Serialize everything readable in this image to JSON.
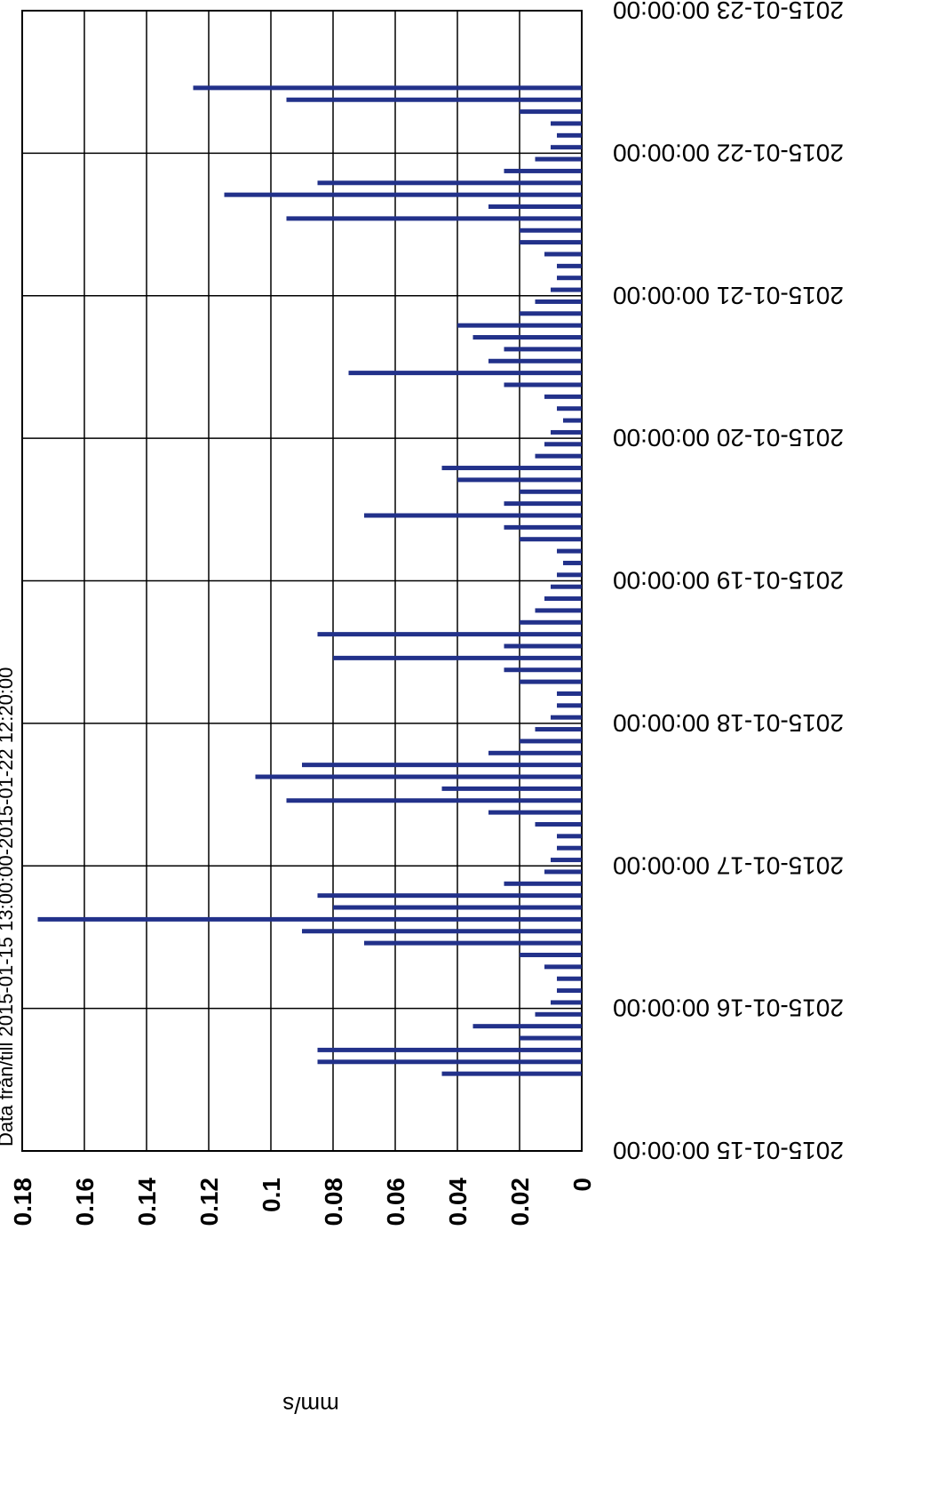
{
  "chart_data": {
    "type": "bar",
    "title": "Data från/till 2015-01-15 13:00:00-2015-01-22 12:20:00",
    "y_label": "mm/s",
    "color": "#22318a",
    "grid": true,
    "xlim": [
      "2015-01-15 00:00:00",
      "2015-01-23 00:00:00"
    ],
    "xticks": [
      "2015-01-15 00:00:00",
      "2015-01-16 00:00:00",
      "2015-01-17 00:00:00",
      "2015-01-18 00:00:00",
      "2015-01-19 00:00:00",
      "2015-01-20 00:00:00",
      "2015-01-21 00:00:00",
      "2015-01-22 00:00:00",
      "2015-01-23 00:00:00"
    ],
    "ylim": [
      0,
      0.18
    ],
    "yticks": [
      0,
      0.02,
      0.04,
      0.06,
      0.08,
      0.1,
      0.12,
      0.14,
      0.16,
      0.18
    ],
    "x": [
      "2015-01-15 13:00:00",
      "2015-01-15 15:00:00",
      "2015-01-15 17:00:00",
      "2015-01-15 19:00:00",
      "2015-01-15 21:00:00",
      "2015-01-15 23:00:00",
      "2015-01-16 01:00:00",
      "2015-01-16 03:00:00",
      "2015-01-16 05:00:00",
      "2015-01-16 07:00:00",
      "2015-01-16 09:00:00",
      "2015-01-16 11:00:00",
      "2015-01-16 13:00:00",
      "2015-01-16 15:00:00",
      "2015-01-16 17:00:00",
      "2015-01-16 19:00:00",
      "2015-01-16 21:00:00",
      "2015-01-16 23:00:00",
      "2015-01-17 01:00:00",
      "2015-01-17 03:00:00",
      "2015-01-17 05:00:00",
      "2015-01-17 07:00:00",
      "2015-01-17 09:00:00",
      "2015-01-17 11:00:00",
      "2015-01-17 13:00:00",
      "2015-01-17 15:00:00",
      "2015-01-17 17:00:00",
      "2015-01-17 19:00:00",
      "2015-01-17 21:00:00",
      "2015-01-17 23:00:00",
      "2015-01-18 01:00:00",
      "2015-01-18 03:00:00",
      "2015-01-18 05:00:00",
      "2015-01-18 07:00:00",
      "2015-01-18 09:00:00",
      "2015-01-18 11:00:00",
      "2015-01-18 13:00:00",
      "2015-01-18 15:00:00",
      "2015-01-18 17:00:00",
      "2015-01-18 19:00:00",
      "2015-01-18 21:00:00",
      "2015-01-18 23:00:00",
      "2015-01-19 01:00:00",
      "2015-01-19 03:00:00",
      "2015-01-19 05:00:00",
      "2015-01-19 07:00:00",
      "2015-01-19 09:00:00",
      "2015-01-19 11:00:00",
      "2015-01-19 13:00:00",
      "2015-01-19 15:00:00",
      "2015-01-19 17:00:00",
      "2015-01-19 19:00:00",
      "2015-01-19 21:00:00",
      "2015-01-19 23:00:00",
      "2015-01-20 01:00:00",
      "2015-01-20 03:00:00",
      "2015-01-20 05:00:00",
      "2015-01-20 07:00:00",
      "2015-01-20 09:00:00",
      "2015-01-20 11:00:00",
      "2015-01-20 13:00:00",
      "2015-01-20 15:00:00",
      "2015-01-20 17:00:00",
      "2015-01-20 19:00:00",
      "2015-01-20 21:00:00",
      "2015-01-20 23:00:00",
      "2015-01-21 01:00:00",
      "2015-01-21 03:00:00",
      "2015-01-21 05:00:00",
      "2015-01-21 07:00:00",
      "2015-01-21 09:00:00",
      "2015-01-21 11:00:00",
      "2015-01-21 13:00:00",
      "2015-01-21 15:00:00",
      "2015-01-21 17:00:00",
      "2015-01-21 19:00:00",
      "2015-01-21 21:00:00",
      "2015-01-21 23:00:00",
      "2015-01-22 01:00:00",
      "2015-01-22 03:00:00",
      "2015-01-22 05:00:00",
      "2015-01-22 07:00:00",
      "2015-01-22 09:00:00",
      "2015-01-22 11:00:00"
    ],
    "values": [
      0.045,
      0.085,
      0.085,
      0.02,
      0.035,
      0.015,
      0.01,
      0.008,
      0.008,
      0.012,
      0.02,
      0.07,
      0.09,
      0.175,
      0.08,
      0.085,
      0.025,
      0.012,
      0.01,
      0.008,
      0.008,
      0.015,
      0.03,
      0.095,
      0.045,
      0.105,
      0.09,
      0.03,
      0.02,
      0.015,
      0.01,
      0.008,
      0.008,
      0.02,
      0.025,
      0.08,
      0.025,
      0.085,
      0.02,
      0.015,
      0.012,
      0.01,
      0.008,
      0.006,
      0.008,
      0.02,
      0.025,
      0.07,
      0.025,
      0.02,
      0.04,
      0.045,
      0.015,
      0.012,
      0.01,
      0.006,
      0.008,
      0.012,
      0.025,
      0.075,
      0.03,
      0.025,
      0.035,
      0.04,
      0.02,
      0.015,
      0.01,
      0.008,
      0.008,
      0.012,
      0.02,
      0.02,
      0.095,
      0.03,
      0.115,
      0.085,
      0.025,
      0.015,
      0.01,
      0.008,
      0.01,
      0.02,
      0.095,
      0.125
    ]
  }
}
